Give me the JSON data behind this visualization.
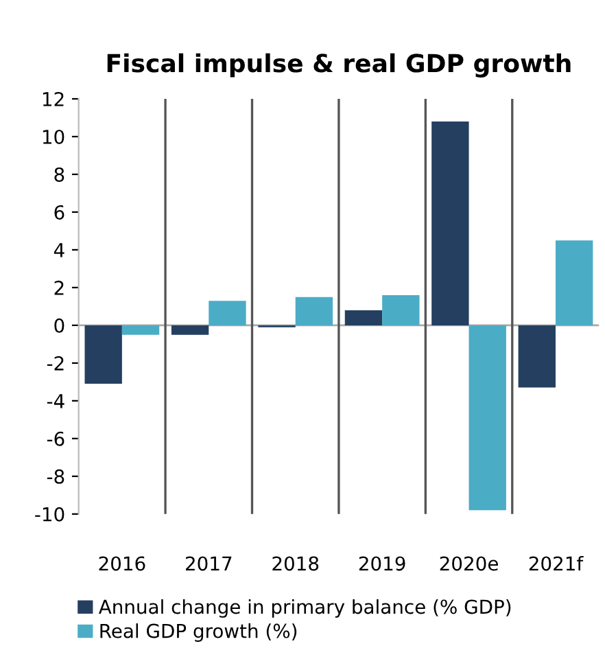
{
  "chart_data": {
    "type": "bar",
    "title": "Fiscal impulse & real GDP growth",
    "categories": [
      "2016",
      "2017",
      "2018",
      "2019",
      "2020e",
      "2021f"
    ],
    "series": [
      {
        "name": "Annual change in primary balance (% GDP)",
        "color": "#243f60",
        "values": [
          -3.1,
          -0.5,
          -0.1,
          0.8,
          10.8,
          -3.3
        ]
      },
      {
        "name": "Real GDP growth (%)",
        "color": "#4bacc6",
        "values": [
          -0.5,
          1.3,
          1.5,
          1.6,
          -9.8,
          4.5
        ]
      }
    ],
    "ylim": [
      -10,
      12
    ],
    "yticks": [
      -10,
      -8,
      -6,
      -4,
      -2,
      0,
      2,
      4,
      6,
      8,
      10,
      12
    ],
    "grid": "x",
    "legend": "bottom left"
  }
}
